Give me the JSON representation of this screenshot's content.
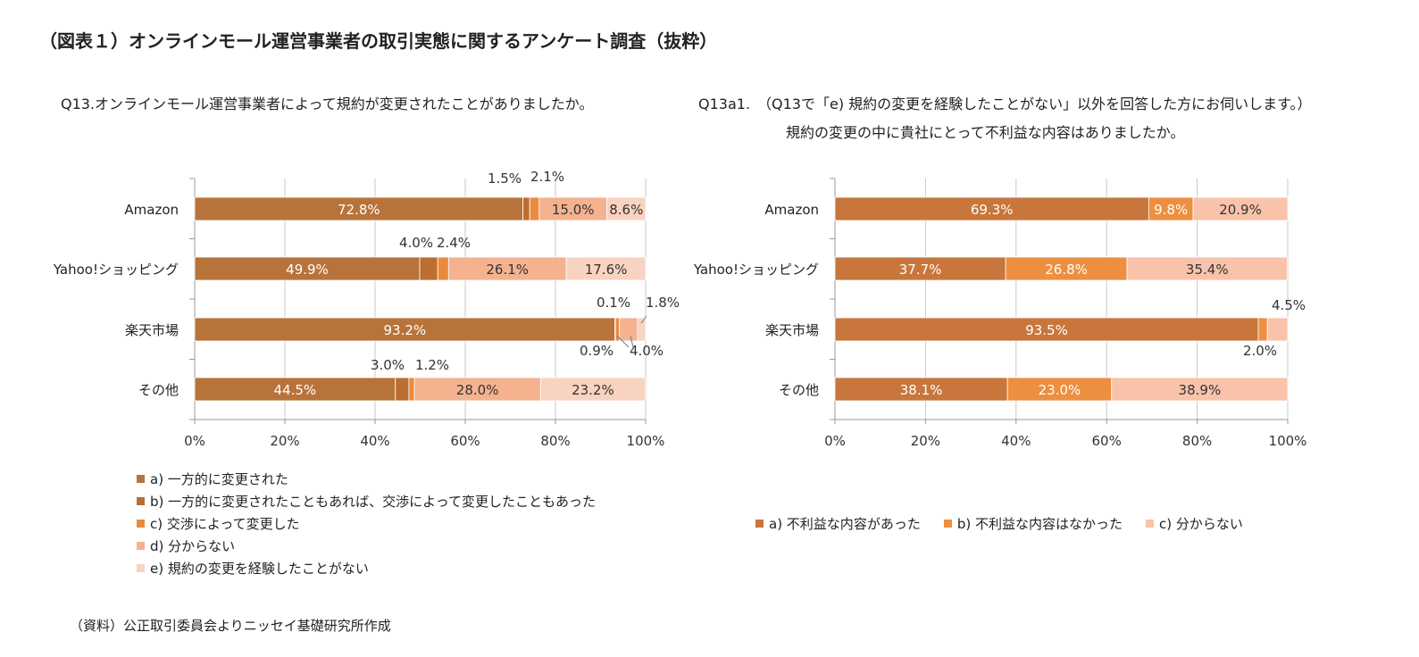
{
  "title": "（図表１）オンラインモール運営事業者の取引実態に関するアンケート調査（抜粋）",
  "question1": "Q13.オンラインモール運営事業者によって規約が変更されたことがありましたか。",
  "question2_line1": "Q13a1.　（Q13で「e) 規約の変更を経験したことがない」以外を回答した方にお伺いします。）",
  "question2_line2": "規約の変更の中に貴社にとって不利益な内容はありましたか。",
  "source": "（資料）公正取引委員会よりニッセイ基礎研究所作成",
  "chart_data": [
    {
      "type": "bar",
      "orientation": "horizontal",
      "stacked": true,
      "categories": [
        "Amazon",
        "Yahoo!ショッピング",
        "楽天市場",
        "その他"
      ],
      "series": [
        {
          "name": "a) 一方的に変更された",
          "color": "#B8733A",
          "values": [
            72.8,
            49.9,
            93.2,
            44.5
          ]
        },
        {
          "name": "b) 一方的に変更されたこともあれば、交渉によって変更したこともあった",
          "color": "#BC6E32",
          "values": [
            1.5,
            4.0,
            0.1,
            3.0
          ]
        },
        {
          "name": "c) 交渉によって変更した",
          "color": "#E98B3E",
          "values": [
            2.1,
            2.4,
            0.9,
            1.2
          ]
        },
        {
          "name": "d) 分からない",
          "color": "#F4B28F",
          "values": [
            15.0,
            26.1,
            4.0,
            28.0
          ]
        },
        {
          "name": "e) 規約の変更を経験したことがない",
          "color": "#F9D3C1",
          "values": [
            8.6,
            17.6,
            1.8,
            23.2
          ]
        }
      ],
      "data_labels": [
        [
          "72.8%",
          "1.5%",
          "2.1%",
          "15.0%",
          "8.6%"
        ],
        [
          "49.9%",
          "4.0%",
          "2.4%",
          "26.1%",
          "17.6%"
        ],
        [
          "93.2%",
          "0.1%",
          "0.9%",
          "4.0%",
          "1.8%"
        ],
        [
          "44.5%",
          "3.0%",
          "1.2%",
          "28.0%",
          "23.2%"
        ]
      ],
      "xlim": [
        0,
        100
      ],
      "x_ticks": [
        "0%",
        "20%",
        "40%",
        "60%",
        "80%",
        "100%"
      ],
      "grid": true,
      "legend_position": "bottom"
    },
    {
      "type": "bar",
      "orientation": "horizontal",
      "stacked": true,
      "categories": [
        "Amazon",
        "Yahoo!ショッピング",
        "楽天市場",
        "その他"
      ],
      "series": [
        {
          "name": "a) 不利益な内容があった",
          "color": "#C8763C",
          "values": [
            69.3,
            37.7,
            93.5,
            38.1
          ]
        },
        {
          "name": "b) 不利益な内容はなかった",
          "color": "#ED8F41",
          "values": [
            9.8,
            26.8,
            2.0,
            23.0
          ]
        },
        {
          "name": "c) 分からない",
          "color": "#F8C3AA",
          "values": [
            20.9,
            35.4,
            4.5,
            38.9
          ]
        }
      ],
      "data_labels": [
        [
          "69.3%",
          "9.8%",
          "20.9%"
        ],
        [
          "37.7%",
          "26.8%",
          "35.4%"
        ],
        [
          "93.5%",
          "2.0%",
          "4.5%"
        ],
        [
          "38.1%",
          "23.0%",
          "38.9%"
        ]
      ],
      "xlim": [
        0,
        100
      ],
      "x_ticks": [
        "0%",
        "20%",
        "40%",
        "60%",
        "80%",
        "100%"
      ],
      "grid": true,
      "legend_position": "bottom"
    }
  ]
}
